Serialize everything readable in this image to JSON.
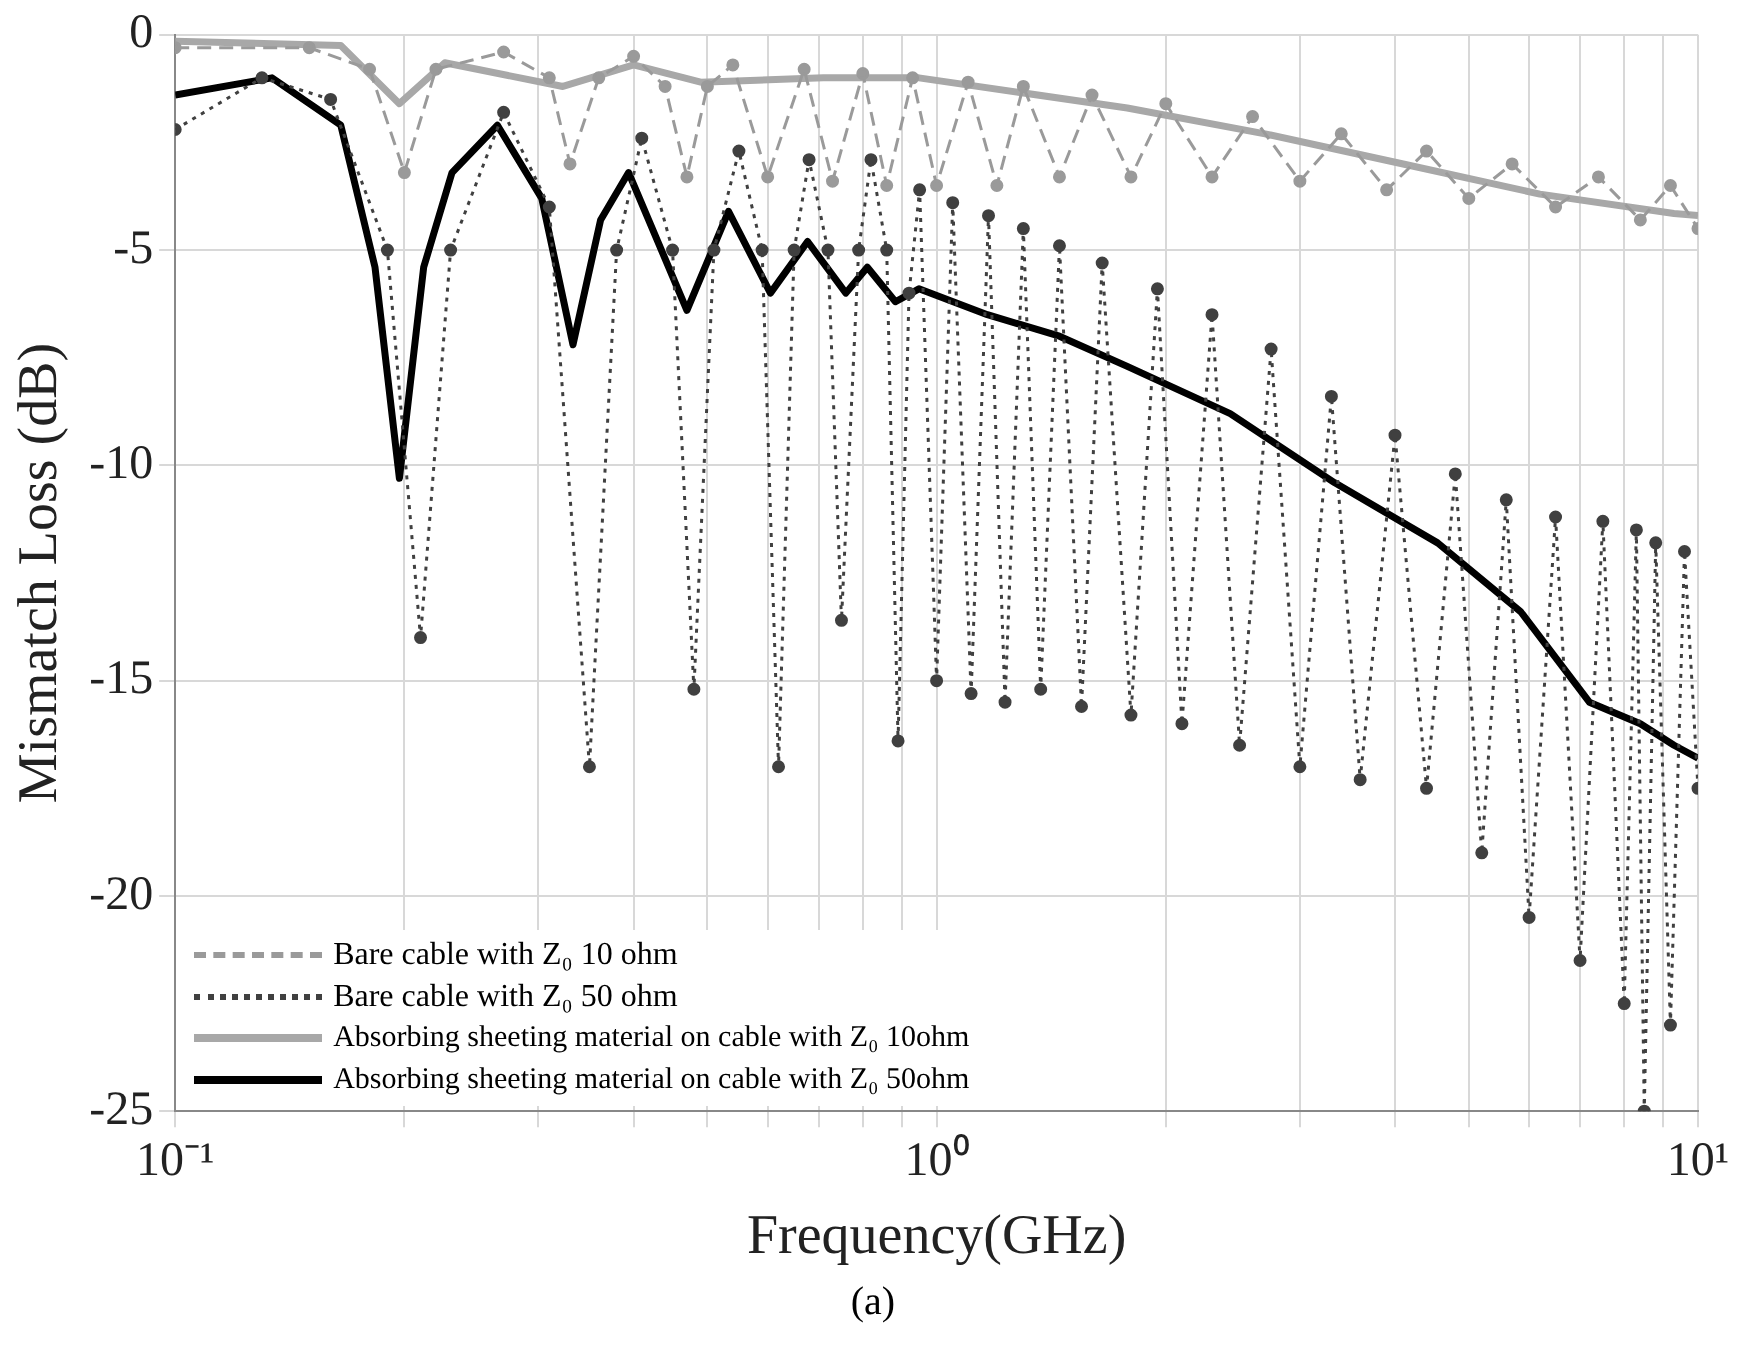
{
  "chart_data": {
    "type": "line",
    "xlabel": "Frequency(GHz)",
    "ylabel": "Mismatch Loss (dB)",
    "log": "x",
    "xlim": [
      0.1,
      10
    ],
    "ylim": [
      -25,
      0
    ],
    "xticks": [
      {
        "value": 0.1,
        "label": "10⁻¹"
      },
      {
        "value": 0.2,
        "label": null
      },
      {
        "value": 0.3,
        "label": null
      },
      {
        "value": 0.4,
        "label": null
      },
      {
        "value": 0.5,
        "label": null
      },
      {
        "value": 0.6,
        "label": null
      },
      {
        "value": 0.7,
        "label": null
      },
      {
        "value": 0.8,
        "label": null
      },
      {
        "value": 0.9,
        "label": null
      },
      {
        "value": 1,
        "label": "10⁰"
      },
      {
        "value": 2,
        "label": null
      },
      {
        "value": 3,
        "label": null
      },
      {
        "value": 4,
        "label": null
      },
      {
        "value": 5,
        "label": null
      },
      {
        "value": 6,
        "label": null
      },
      {
        "value": 7,
        "label": null
      },
      {
        "value": 8,
        "label": null
      },
      {
        "value": 9,
        "label": null
      },
      {
        "value": 10,
        "label": "10¹"
      }
    ],
    "yticks": [
      -25,
      -20,
      -15,
      -10,
      -5,
      0
    ],
    "grid": true,
    "legend": "bottom left",
    "annotations": [
      "(a)"
    ],
    "series": [
      {
        "name": "Bare cable with Z₀ 10 ohm",
        "color": "#9a9a9a",
        "marker": "circle",
        "line_style": "dashed",
        "x": [
          0.1,
          0.15,
          0.18,
          0.2,
          0.22,
          0.27,
          0.31,
          0.33,
          0.36,
          0.4,
          0.44,
          0.47,
          0.5,
          0.54,
          0.6,
          0.67,
          0.73,
          0.8,
          0.86,
          0.93,
          1.0,
          1.1,
          1.2,
          1.3,
          1.45,
          1.6,
          1.8,
          2.0,
          2.3,
          2.6,
          3.0,
          3.4,
          3.9,
          4.4,
          5.0,
          5.7,
          6.5,
          7.4,
          8.4,
          9.2,
          10
        ],
        "values": [
          -0.3,
          -0.3,
          -0.8,
          -3.2,
          -0.8,
          -0.4,
          -1.0,
          -3.0,
          -1.0,
          -0.5,
          -1.2,
          -3.3,
          -1.2,
          -0.7,
          -3.3,
          -0.8,
          -3.4,
          -0.9,
          -3.5,
          -1.0,
          -3.5,
          -1.1,
          -3.5,
          -1.2,
          -3.3,
          -1.4,
          -3.3,
          -1.6,
          -3.3,
          -1.9,
          -3.4,
          -2.3,
          -3.6,
          -2.7,
          -3.8,
          -3.0,
          -4.0,
          -3.3,
          -4.3,
          -3.5,
          -4.5
        ]
      },
      {
        "name": "Bare cable with Z₀ 50 ohm",
        "color": "#404040",
        "marker": "circle",
        "line_style": "dotted",
        "x": [
          0.1,
          0.13,
          0.16,
          0.19,
          0.21,
          0.23,
          0.27,
          0.31,
          0.35,
          0.38,
          0.41,
          0.45,
          0.48,
          0.51,
          0.55,
          0.59,
          0.62,
          0.65,
          0.68,
          0.72,
          0.75,
          0.79,
          0.82,
          0.86,
          0.89,
          0.92,
          0.95,
          1.0,
          1.05,
          1.11,
          1.17,
          1.23,
          1.3,
          1.37,
          1.45,
          1.55,
          1.65,
          1.8,
          1.95,
          2.1,
          2.3,
          2.5,
          2.75,
          3.0,
          3.3,
          3.6,
          4.0,
          4.4,
          4.8,
          5.2,
          5.6,
          6.0,
          6.5,
          7.0,
          7.5,
          8.0,
          8.3,
          8.5,
          8.8,
          9.2,
          9.6,
          10
        ],
        "values": [
          -2.2,
          -1.0,
          -1.5,
          -5,
          -14.0,
          -5,
          -1.8,
          -4,
          -17.0,
          -5,
          -2.4,
          -5,
          -15.2,
          -5,
          -2.7,
          -5,
          -17.0,
          -5,
          -2.9,
          -5,
          -13.6,
          -5,
          -2.9,
          -5,
          -16.4,
          -6,
          -3.6,
          -15.0,
          -3.9,
          -15.3,
          -4.2,
          -15.5,
          -4.5,
          -15.2,
          -4.9,
          -15.6,
          -5.3,
          -15.8,
          -5.9,
          -16.0,
          -6.5,
          -16.5,
          -7.3,
          -17.0,
          -8.4,
          -17.3,
          -9.3,
          -17.5,
          -10.2,
          -19.0,
          -10.8,
          -20.5,
          -11.2,
          -21.5,
          -11.3,
          -22.5,
          -11.5,
          -25.0,
          -11.8,
          -23.0,
          -12.0,
          -17.5
        ]
      },
      {
        "name": "Absorbing sheeting material on cable with Z₀ 10ohm",
        "color": "#a8a8a8",
        "line_style": "solid",
        "x": [
          0.1,
          0.165,
          0.197,
          0.226,
          0.323,
          0.4,
          0.49,
          0.71,
          0.948,
          1.78,
          2.7,
          4.1,
          6.2,
          9.3,
          10
        ],
        "values": [
          -0.15,
          -0.25,
          -1.6,
          -0.65,
          -1.2,
          -0.7,
          -1.1,
          -1.0,
          -1.0,
          -1.7,
          -2.3,
          -3.0,
          -3.7,
          -4.15,
          -4.2
        ]
      },
      {
        "name": "Absorbing sheeting material on cable with Z₀ 50ohm",
        "color": "#000000",
        "line_style": "solid",
        "x": [
          0.1,
          0.134,
          0.165,
          0.183,
          0.197,
          0.212,
          0.231,
          0.265,
          0.303,
          0.333,
          0.362,
          0.394,
          0.47,
          0.533,
          0.605,
          0.677,
          0.76,
          0.811,
          0.883,
          0.948,
          1.166,
          1.45,
          1.78,
          2.43,
          3.33,
          4.55,
          5.85,
          7.2,
          8.4,
          9.3,
          10
        ],
        "values": [
          -1.4,
          -1.0,
          -2.1,
          -5.4,
          -10.3,
          -5.4,
          -3.2,
          -2.1,
          -3.8,
          -7.2,
          -4.3,
          -3.2,
          -6.4,
          -4.1,
          -6.0,
          -4.8,
          -6.0,
          -5.4,
          -6.2,
          -5.9,
          -6.5,
          -7.0,
          -7.7,
          -8.8,
          -10.4,
          -11.8,
          -13.4,
          -15.5,
          -16.0,
          -16.5,
          -16.8
        ]
      }
    ]
  }
}
